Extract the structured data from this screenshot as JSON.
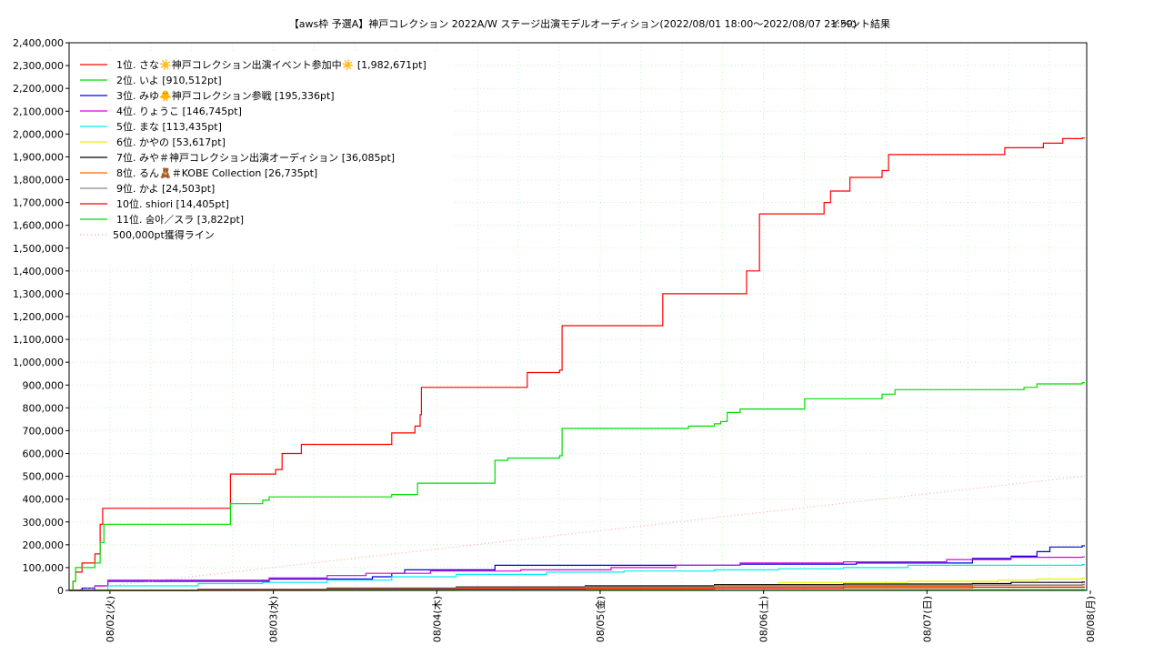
{
  "chart_data": {
    "type": "line",
    "title": "【aws枠 予選A】神戸コレクション 2022A/W ステージ出演モデルオーディション(2022/08/01 18:00〜2022/08/07 21:59)",
    "subtitle": "イベント結果",
    "xlabel": "",
    "ylabel": "",
    "ylim": [
      0,
      2400000
    ],
    "xlim": [
      "2022/08/01 18:00",
      "2022/08/08 00:00"
    ],
    "grid": true,
    "legend_position": "top-left",
    "y_ticks": [
      "0",
      "100,000",
      "200,000",
      "300,000",
      "400,000",
      "500,000",
      "600,000",
      "700,000",
      "800,000",
      "900,000",
      "1,000,000",
      "1,100,000",
      "1,200,000",
      "1,300,000",
      "1,400,000",
      "1,500,000",
      "1,600,000",
      "1,700,000",
      "1,800,000",
      "1,900,000",
      "2,000,000",
      "2,100,000",
      "2,200,000",
      "2,300,000",
      "2,400,000"
    ],
    "x_ticks": [
      "08/02(火)",
      "08/03(水)",
      "08/04(木)",
      "08/05(金)",
      "08/06(土)",
      "08/07(日)",
      "08/08(月)"
    ],
    "series": [
      {
        "name": "1位. さな☀️神戸コレクション出演イベント参加中☀️ [1,982,671pt]",
        "color": "#ff0000",
        "style": "solid",
        "x": [
          0,
          0.03,
          0.05,
          0.1,
          0.2,
          0.24,
          0.26,
          0.27,
          0.3,
          1.2,
          1.25,
          1.3,
          1.6,
          1.65,
          1.75,
          1.8,
          2.4,
          2.5,
          2.55,
          2.6,
          2.68,
          2.72,
          2.73,
          2.8,
          3.5,
          3.55,
          3.6,
          3.8,
          3.82,
          4.55,
          4.6,
          4.65,
          5.2,
          5.25,
          5.3,
          5.35,
          5.8,
          5.85,
          5.9,
          6.0,
          6.05,
          6.1,
          6.2,
          6.3,
          6.35,
          6.5,
          6.55,
          6.6,
          7.2,
          7.25,
          7.5,
          7.55,
          7.65,
          7.7,
          7.85
        ],
        "y": [
          0,
          40000,
          80000,
          120000,
          160000,
          290000,
          360000,
          360000,
          360000,
          360000,
          510000,
          510000,
          530000,
          600000,
          600000,
          640000,
          640000,
          690000,
          690000,
          690000,
          720000,
          770000,
          890000,
          890000,
          890000,
          955000,
          955000,
          965000,
          1160000,
          1160000,
          1300000,
          1300000,
          1300000,
          1400000,
          1400000,
          1650000,
          1650000,
          1700000,
          1750000,
          1750000,
          1810000,
          1810000,
          1810000,
          1840000,
          1910000,
          1910000,
          1910000,
          1910000,
          1910000,
          1940000,
          1940000,
          1960000,
          1960000,
          1980000,
          1982671
        ]
      },
      {
        "name": "2位. いよ [910,512pt]",
        "color": "#00dd00",
        "style": "solid",
        "x": [
          0,
          0.03,
          0.05,
          0.1,
          0.2,
          0.24,
          0.27,
          0.3,
          1.2,
          1.25,
          1.4,
          1.5,
          1.55,
          2.3,
          2.35,
          2.5,
          2.55,
          2.6,
          2.7,
          3.0,
          3.3,
          3.4,
          3.45,
          3.8,
          3.82,
          4.8,
          5.0,
          5.05,
          5.1,
          5.2,
          5.65,
          5.7,
          6.2,
          6.3,
          6.4,
          7.15,
          7.2,
          7.4,
          7.5,
          7.85
        ],
        "y": [
          0,
          40000,
          100000,
          100000,
          120000,
          210000,
          290000,
          290000,
          290000,
          380000,
          380000,
          395000,
          410000,
          410000,
          410000,
          420000,
          420000,
          420000,
          470000,
          470000,
          570000,
          580000,
          580000,
          590000,
          710000,
          720000,
          730000,
          740000,
          780000,
          795000,
          795000,
          840000,
          840000,
          860000,
          880000,
          880000,
          880000,
          890000,
          905000,
          910512
        ]
      },
      {
        "name": "3位. みゆ🐥神戸コレクション参戦 [195,336pt]",
        "color": "#0000dd",
        "style": "solid",
        "x": [
          0,
          0.1,
          0.2,
          0.3,
          1.3,
          1.55,
          2.35,
          2.5,
          2.6,
          3.3,
          4.3,
          5.2,
          6.1,
          7.0,
          7.3,
          7.5,
          7.6,
          7.85
        ],
        "y": [
          0,
          10000,
          20000,
          40000,
          40000,
          50000,
          60000,
          75000,
          90000,
          110000,
          110000,
          115000,
          120000,
          140000,
          150000,
          170000,
          190000,
          195336
        ]
      },
      {
        "name": "4位. りょうこ [146,745pt]",
        "color": "#dd00dd",
        "style": "solid",
        "x": [
          0,
          0.2,
          0.3,
          1.0,
          1.55,
          2.0,
          2.3,
          2.8,
          3.5,
          4.2,
          4.7,
          5.2,
          6.0,
          6.8,
          7.3,
          7.85
        ],
        "y": [
          0,
          20000,
          45000,
          45000,
          55000,
          65000,
          75000,
          85000,
          90000,
          100000,
          110000,
          120000,
          125000,
          135000,
          145000,
          146745
        ]
      },
      {
        "name": "5位. まな [113,435pt]",
        "color": "#00eeee",
        "style": "solid",
        "x": [
          0,
          0.3,
          1.0,
          1.5,
          2.0,
          2.5,
          3.0,
          3.7,
          4.3,
          5.0,
          5.5,
          6.0,
          6.5,
          7.85
        ],
        "y": [
          0,
          20000,
          30000,
          35000,
          45000,
          60000,
          70000,
          80000,
          85000,
          90000,
          95000,
          100000,
          110000,
          113435
        ]
      },
      {
        "name": "6位. かやの [53,617pt]",
        "color": "#eeee00",
        "style": "solid",
        "x": [
          0,
          1.0,
          2.0,
          3.0,
          4.0,
          5.0,
          5.5,
          6.5,
          7.2,
          7.5,
          7.85
        ],
        "y": [
          0,
          5000,
          10000,
          15000,
          20000,
          25000,
          35000,
          40000,
          45000,
          50000,
          53617
        ]
      },
      {
        "name": "7位. みや＃神戸コレクション出演オーディション [36,085pt]",
        "color": "#000000",
        "style": "solid",
        "x": [
          0,
          1.0,
          2.0,
          3.0,
          4.0,
          5.0,
          6.0,
          7.0,
          7.3,
          7.85
        ],
        "y": [
          0,
          5000,
          10000,
          15000,
          20000,
          25000,
          28000,
          30000,
          35000,
          36085
        ]
      },
      {
        "name": "8位. るん🧸＃KOBE Collection [26,735pt]",
        "color": "#ff6600",
        "style": "solid",
        "x": [
          0,
          1.0,
          2.0,
          3.0,
          4.0,
          5.0,
          6.0,
          7.0,
          7.85
        ],
        "y": [
          0,
          3000,
          6000,
          9000,
          12000,
          15000,
          18000,
          22000,
          26735
        ]
      },
      {
        "name": "9位. かよ [24,503pt]",
        "color": "#888888",
        "style": "solid",
        "x": [
          0,
          1.0,
          2.0,
          3.0,
          4.0,
          5.0,
          6.0,
          7.0,
          7.85
        ],
        "y": [
          0,
          5000,
          8000,
          12000,
          16000,
          20000,
          22000,
          24000,
          24503
        ]
      },
      {
        "name": "10位. shiori [14,405pt]",
        "color": "#ff0000",
        "style": "solid",
        "x": [
          0,
          1.0,
          2.0,
          3.0,
          4.0,
          5.0,
          6.0,
          7.0,
          7.85
        ],
        "y": [
          0,
          2000,
          4000,
          6000,
          8000,
          10000,
          12000,
          14000,
          14405
        ]
      },
      {
        "name": "11位. 숨아／スラ [3,822pt]",
        "color": "#00dd00",
        "style": "solid",
        "x": [
          0,
          2.0,
          4.0,
          6.0,
          7.85
        ],
        "y": [
          0,
          1000,
          2000,
          3000,
          3822
        ]
      },
      {
        "name": "500,000pt獲得ライン",
        "color": "#ff9999",
        "style": "dotted",
        "x": [
          0,
          7.85
        ],
        "y": [
          0,
          500000
        ]
      }
    ]
  }
}
